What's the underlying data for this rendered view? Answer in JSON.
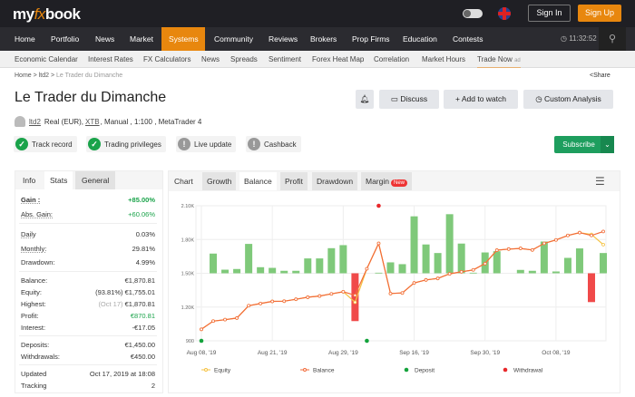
{
  "header": {
    "logo": "myfxbook",
    "sign_in": "Sign In",
    "sign_up": "Sign Up",
    "clock": "11:32:52"
  },
  "nav": {
    "items": [
      "Home",
      "Portfolio",
      "News",
      "Market",
      "Systems",
      "Community",
      "Reviews",
      "Brokers",
      "Prop Firms",
      "Education",
      "Contests"
    ],
    "active": "Systems"
  },
  "subnav": {
    "items": [
      "Economic Calendar",
      "Interest Rates",
      "FX Calculators",
      "News",
      "Spreads",
      "Sentiment",
      "Forex Heat Map",
      "Correlation",
      "Market Hours",
      "Trade Now"
    ],
    "ad": "ad"
  },
  "breadcrumb": {
    "home": "Home",
    "user": "ltd2",
    "current": "Le Trader du Dimanche",
    "sep": ">"
  },
  "share": "Share",
  "title": "Le Trader du Dimanche",
  "actions": {
    "discuss": "Discuss",
    "watch": "Add to watch",
    "custom": "Custom Analysis"
  },
  "user": {
    "name": "ltd2",
    "type": "Real (EUR),",
    "broker": "XTB",
    "rest": ", Manual , 1:100 , MetaTrader 4"
  },
  "badges": [
    {
      "label": "Track record",
      "status": "ok"
    },
    {
      "label": "Trading privileges",
      "status": "ok"
    },
    {
      "label": "Live update",
      "status": "warn"
    },
    {
      "label": "Cashback",
      "status": "warn"
    }
  ],
  "subscribe": "Subscribe",
  "stats": {
    "tabs": [
      "Info",
      "Stats",
      "General"
    ],
    "active": "Stats",
    "gain": {
      "k": "Gain :",
      "v": "+85.00%"
    },
    "abs_gain": {
      "k": "Abs. Gain:",
      "v": "+60.06%"
    },
    "daily": {
      "k": "Daily",
      "v": "0.03%"
    },
    "monthly": {
      "k": "Monthly:",
      "v": "29.81%"
    },
    "drawdown": {
      "k": "Drawdown:",
      "v": "4.99%"
    },
    "balance": {
      "k": "Balance:",
      "v": "€1,870.81"
    },
    "equity": {
      "k": "Equity:",
      "pct": "(93.81%)",
      "v": "€1,755.01"
    },
    "highest": {
      "k": "Highest:",
      "date": "(Oct 17)",
      "v": "€1,870.81"
    },
    "profit": {
      "k": "Profit:",
      "v": "€870.81"
    },
    "interest": {
      "k": "Interest:",
      "v": "-€17.05"
    },
    "deposits": {
      "k": "Deposits:",
      "v": "€1,450.00"
    },
    "withdrawals": {
      "k": "Withdrawals:",
      "v": "€450.00"
    },
    "updated": {
      "k": "Updated",
      "v": "Oct 17, 2019 at 18:08"
    },
    "tracking": {
      "k": "Tracking",
      "v": "2"
    }
  },
  "chart_tabs": {
    "items": [
      "Chart",
      "Growth",
      "Balance",
      "Profit",
      "Drawdown",
      "Margin"
    ],
    "active": "Balance",
    "new_badge": "New"
  },
  "chart_data": {
    "type": "line",
    "ylim": [
      900,
      2100
    ],
    "yticks": [
      "900",
      "1.20K",
      "1.50K",
      "1.80K",
      "2.10K"
    ],
    "ytick_values": [
      900,
      1200,
      1500,
      1800,
      2100
    ],
    "xtick_labels": [
      {
        "index": 0,
        "label": "Aug 08, '19"
      },
      {
        "index": 6,
        "label": "Aug 21, '19"
      },
      {
        "index": 12,
        "label": "Aug 29, '19"
      },
      {
        "index": 18,
        "label": "Sep 16, '19"
      },
      {
        "index": 24,
        "label": "Sep 30, '19"
      },
      {
        "index": 30,
        "label": "Oct 08, '19"
      }
    ],
    "grid": true,
    "legend_position": "bottom",
    "series": [
      {
        "name": "Equity",
        "color": "#f5c242",
        "values": [
          1002,
          1075,
          1088,
          1102,
          1212,
          1231,
          1250,
          1252,
          1269,
          1287,
          1298,
          1317,
          1336,
          1242,
          1540,
          1766,
          1320,
          1325,
          1414,
          1441,
          1454,
          1495,
          1513,
          1530,
          1586,
          1705,
          1715,
          1721,
          1707,
          1766,
          1796,
          1836,
          1861,
          1845,
          1755
        ]
      },
      {
        "name": "Balance",
        "color": "#f26b3a",
        "values": [
          1002,
          1075,
          1088,
          1102,
          1212,
          1231,
          1250,
          1252,
          1269,
          1287,
          1298,
          1317,
          1336,
          1304,
          1540,
          1766,
          1320,
          1325,
          1414,
          1441,
          1454,
          1495,
          1513,
          1530,
          1586,
          1705,
          1715,
          1721,
          1707,
          1766,
          1796,
          1836,
          1861,
          1836,
          1871
        ]
      },
      {
        "name": "Deposit",
        "color": "#14a33c",
        "points": [
          {
            "index": 0,
            "value": 900
          },
          {
            "index": 14,
            "value": 900
          }
        ]
      },
      {
        "name": "Withdrawal",
        "color": "#e8282b",
        "points": [
          {
            "index": 15,
            "value": 2100
          }
        ]
      }
    ],
    "bars": {
      "baseline": 1500,
      "positive_color": "#7fc97a",
      "negative_color": "#f04a4a",
      "values": [
        null,
        1675,
        1532,
        1538,
        1761,
        1554,
        1548,
        1522,
        1522,
        1632,
        1632,
        1723,
        1750,
        1075,
        null,
        1505,
        1597,
        1581,
        2006,
        1756,
        1680,
        2025,
        1764,
        1505,
        1685,
        1696,
        null,
        1530,
        1522,
        1782,
        1516,
        1637,
        1721,
        1244,
        1680
      ]
    }
  }
}
